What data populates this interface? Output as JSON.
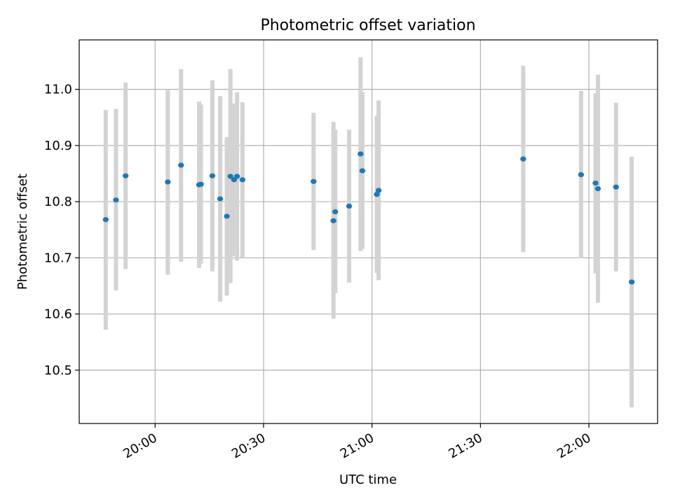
{
  "chart_data": {
    "type": "scatter",
    "title": "Photometric offset variation",
    "xlabel": "UTC time",
    "ylabel": "Photometric offset",
    "x_ticks": [
      "20:00",
      "20:30",
      "21:00",
      "21:30",
      "22:00"
    ],
    "y_ticks": [
      "10.5",
      "10.6",
      "10.7",
      "10.8",
      "10.9",
      "11.0"
    ],
    "xlim": [
      "19:39",
      "22:19"
    ],
    "ylim": [
      10.405,
      11.088
    ],
    "grid": true,
    "colors": {
      "points": "#1f77b4",
      "error_bars": "#d3d3d3",
      "grid": "#b0b0b0"
    },
    "series": [
      {
        "points": [
          {
            "x": "19:46:20",
            "y": 10.768,
            "ylo": 10.572,
            "yhi": 10.963
          },
          {
            "x": "19:49:10",
            "y": 10.803,
            "ylo": 10.642,
            "yhi": 10.965
          },
          {
            "x": "19:51:50",
            "y": 10.846,
            "ylo": 10.68,
            "yhi": 11.012
          },
          {
            "x": "20:03:30",
            "y": 10.835,
            "ylo": 10.67,
            "yhi": 11.0
          },
          {
            "x": "20:07:10",
            "y": 10.865,
            "ylo": 10.693,
            "yhi": 11.036
          },
          {
            "x": "20:12:10",
            "y": 10.83,
            "ylo": 10.682,
            "yhi": 10.978
          },
          {
            "x": "20:12:40",
            "y": 10.831,
            "ylo": 10.69,
            "yhi": 10.973
          },
          {
            "x": "20:15:50",
            "y": 10.846,
            "ylo": 10.676,
            "yhi": 11.016
          },
          {
            "x": "20:18:00",
            "y": 10.805,
            "ylo": 10.622,
            "yhi": 10.988
          },
          {
            "x": "20:19:50",
            "y": 10.774,
            "ylo": 10.633,
            "yhi": 10.915
          },
          {
            "x": "20:20:50",
            "y": 10.845,
            "ylo": 10.655,
            "yhi": 11.036
          },
          {
            "x": "20:21:50",
            "y": 10.839,
            "ylo": 10.703,
            "yhi": 10.975
          },
          {
            "x": "20:22:40",
            "y": 10.845,
            "ylo": 10.695,
            "yhi": 10.995
          },
          {
            "x": "20:24:10",
            "y": 10.839,
            "ylo": 10.701,
            "yhi": 10.977
          },
          {
            "x": "20:43:50",
            "y": 10.836,
            "ylo": 10.714,
            "yhi": 10.958
          },
          {
            "x": "20:49:20",
            "y": 10.766,
            "ylo": 10.592,
            "yhi": 10.942
          },
          {
            "x": "20:49:50",
            "y": 10.782,
            "ylo": 10.637,
            "yhi": 10.928
          },
          {
            "x": "20:53:40",
            "y": 10.792,
            "ylo": 10.656,
            "yhi": 10.928
          },
          {
            "x": "20:56:50",
            "y": 10.885,
            "ylo": 10.712,
            "yhi": 11.057
          },
          {
            "x": "20:57:20",
            "y": 10.855,
            "ylo": 10.716,
            "yhi": 10.995
          },
          {
            "x": "21:01:20",
            "y": 10.813,
            "ylo": 10.673,
            "yhi": 10.953
          },
          {
            "x": "21:01:50",
            "y": 10.82,
            "ylo": 10.66,
            "yhi": 10.98
          },
          {
            "x": "21:41:50",
            "y": 10.876,
            "ylo": 10.71,
            "yhi": 11.042
          },
          {
            "x": "21:57:50",
            "y": 10.848,
            "ylo": 10.699,
            "yhi": 10.997
          },
          {
            "x": "22:01:50",
            "y": 10.833,
            "ylo": 10.672,
            "yhi": 10.993
          },
          {
            "x": "22:02:30",
            "y": 10.823,
            "ylo": 10.62,
            "yhi": 11.026
          },
          {
            "x": "22:07:30",
            "y": 10.826,
            "ylo": 10.676,
            "yhi": 10.976
          },
          {
            "x": "22:11:50",
            "y": 10.657,
            "ylo": 10.434,
            "yhi": 10.88
          }
        ]
      }
    ]
  }
}
